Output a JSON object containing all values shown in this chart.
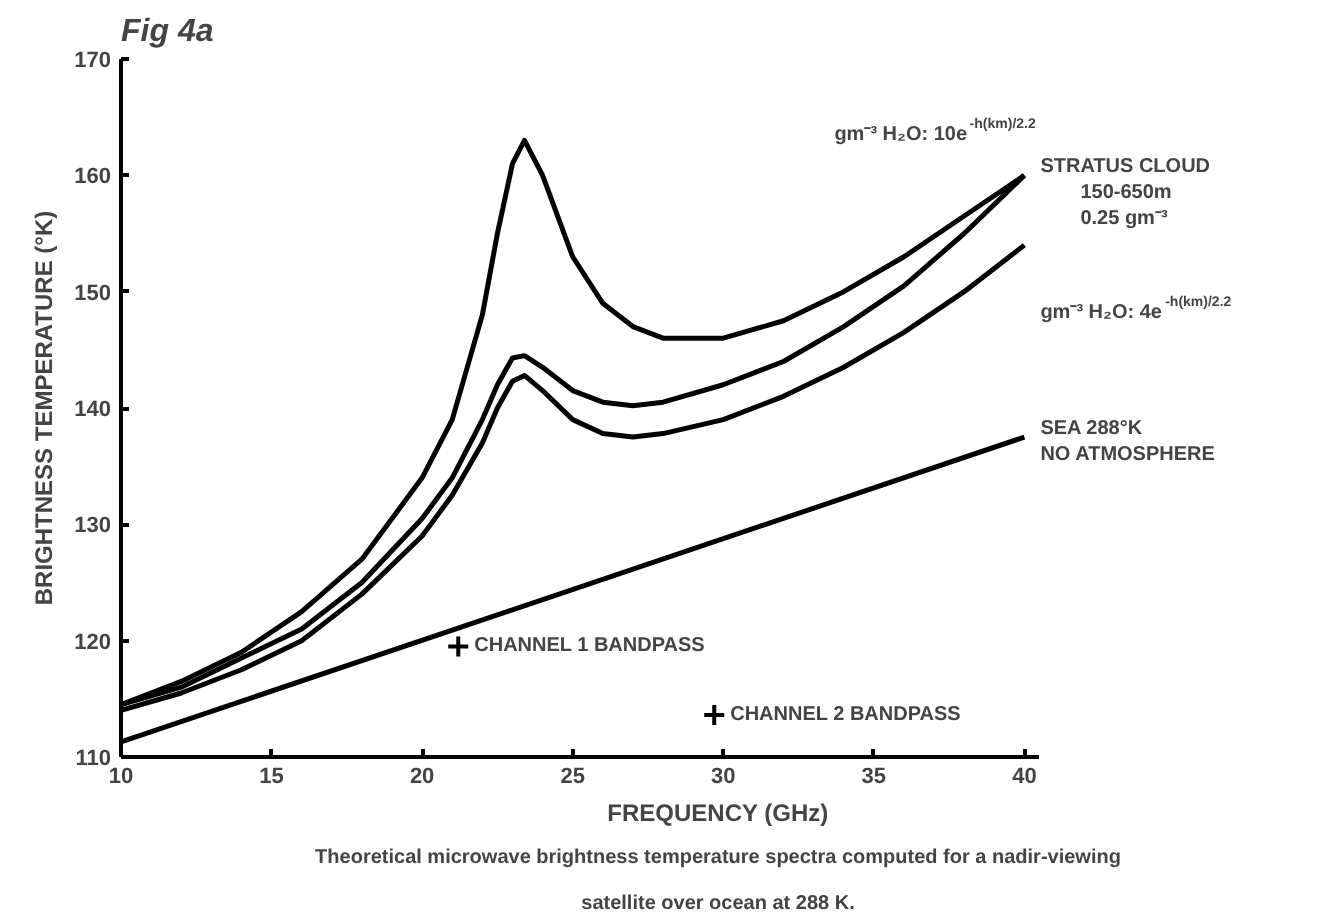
{
  "chart_data": {
    "type": "line",
    "title": "Fig 4a",
    "xlabel": "FREQUENCY (GHz)",
    "ylabel": "BRIGHTNESS TEMPERATURE (°K)",
    "x": [
      10,
      12,
      14,
      16,
      18,
      20,
      21,
      22,
      22.5,
      23,
      23.4,
      24,
      25,
      26,
      27,
      28,
      30,
      32,
      34,
      36,
      38,
      40
    ],
    "series": [
      {
        "name": "gm⁻³ H₂O: 10e$^{-h(km)/2.2}$",
        "color": "#000000",
        "values": [
          114.5,
          116.5,
          119,
          122.5,
          127,
          134,
          139,
          148,
          155,
          161,
          163,
          160,
          153,
          149,
          147,
          146,
          146,
          147.5,
          150,
          153,
          156.5,
          160
        ]
      },
      {
        "name": "STRATUS CLOUD\n150-650m\n0.25 gm⁻³",
        "color": "#000000",
        "values": [
          114.5,
          116,
          118.5,
          121,
          125,
          130.5,
          134,
          139,
          142,
          144.3,
          144.5,
          143.5,
          141.5,
          140.5,
          140.2,
          140.5,
          142,
          144,
          147,
          150.5,
          155,
          160
        ]
      },
      {
        "name": "gm⁻³ H₂O: 4e$^{-h(km)/2.2}$",
        "color": "#000000",
        "values": [
          114,
          115.5,
          117.5,
          120,
          124,
          129,
          132.5,
          137,
          140,
          142.3,
          142.8,
          141.5,
          139,
          137.8,
          137.5,
          137.8,
          139,
          141,
          143.5,
          146.5,
          150,
          154
        ]
      },
      {
        "name": "SEA 288°K\nNO ATMOSPHERE",
        "color": "#000000",
        "x": [
          10,
          40
        ],
        "values": [
          111.3,
          137.5
        ]
      },
      {
        "type": "scatter",
        "marker": "cross",
        "color": "#000000",
        "x": [
          21.2,
          29.7
        ],
        "values": [
          119.5,
          113.6
        ]
      }
    ],
    "xlim": [
      10,
      40.5
    ],
    "ylim": [
      110,
      170
    ],
    "xticks": [
      10,
      15,
      20,
      25,
      30,
      35,
      40
    ],
    "yticks": [
      110,
      120,
      130,
      140,
      150,
      160,
      170
    ],
    "grid": false,
    "marker": "none",
    "line_style": "solid",
    "annotations": [
      {
        "text": "CHANNEL 1 BANDPASS",
        "x": 21.2,
        "y": 119.5
      },
      {
        "text": "CHANNEL 2 BANDPASS",
        "x": 29.7,
        "y": 113.6
      },
      "Theoretical microwave brightness temperature spectra computed for a nadir-viewing satellite over ocean at 288 K."
    ]
  }
}
